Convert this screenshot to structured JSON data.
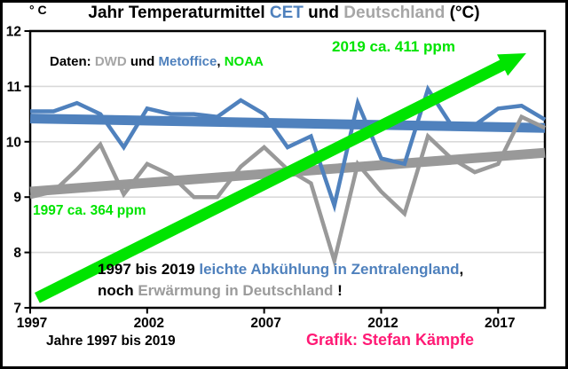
{
  "colors": {
    "cet_blue": "#4f81bd",
    "germany_gray": "#999999",
    "title_gray": "#a6a6a6",
    "co2_green": "#00e400",
    "credit_pink": "#ff1a75",
    "grid_gray": "#d9d9d9",
    "axis_black": "#000000"
  },
  "title": {
    "parts": [
      {
        "t": "Jahr Temperaturmittel ",
        "c": "#000000"
      },
      {
        "t": "CET",
        "c": "#4f81bd"
      },
      {
        "t": " und ",
        "c": "#000000"
      },
      {
        "t": "Deutschland",
        "c": "#a6a6a6"
      },
      {
        "t": " (°C)",
        "c": "#000000"
      }
    ],
    "unit_label": "° C"
  },
  "legend": {
    "parts": [
      {
        "t": "Daten: ",
        "c": "#000000"
      },
      {
        "t": "DWD",
        "c": "#a6a6a6"
      },
      {
        "t": " und ",
        "c": "#000000"
      },
      {
        "t": "Metoffice",
        "c": "#4f81bd"
      },
      {
        "t": ", ",
        "c": "#000000"
      },
      {
        "t": "NOAA",
        "c": "#00e400"
      }
    ]
  },
  "labels": {
    "co2_start": "1997 ca. 364 ppm",
    "co2_end": "2019 ca. 411 ppm",
    "annotation1_parts": [
      {
        "t": "1997 bis 2019 ",
        "c": "#000000"
      },
      {
        "t": "leichte Abkühlung in Zentralengland",
        "c": "#4f81bd"
      },
      {
        "t": ",",
        "c": "#000000"
      }
    ],
    "annotation2_parts": [
      {
        "t": "noch ",
        "c": "#000000"
      },
      {
        "t": "Erwärmung in Deutschland ",
        "c": "#9b9b9b"
      },
      {
        "t": "!",
        "c": "#000000"
      }
    ],
    "footer_left": "Jahre 1997 bis 2019",
    "footer_right": "Grafik: Stefan Kämpfe"
  },
  "chart_data": {
    "type": "line",
    "title": "Jahr Temperaturmittel CET und Deutschland (°C)",
    "xlabel": "Jahre 1997 bis 2019",
    "ylabel": "° C",
    "xlim": [
      1997,
      2019
    ],
    "ylim": [
      7,
      12
    ],
    "xticks": [
      1997,
      2002,
      2007,
      2012,
      2017
    ],
    "yticks": [
      12,
      11,
      10,
      9,
      8,
      7
    ],
    "grid": "horizontal-lightgray",
    "legend_position": "none (inline colored text top-left)",
    "x": [
      1997,
      1998,
      1999,
      2000,
      2001,
      2002,
      2003,
      2004,
      2005,
      2006,
      2007,
      2008,
      2009,
      2010,
      2011,
      2012,
      2013,
      2014,
      2015,
      2016,
      2017,
      2018,
      2019
    ],
    "series": [
      {
        "name": "CET",
        "role": "data",
        "color": "#4f81bd",
        "width": 4.5,
        "values": [
          10.55,
          10.55,
          10.7,
          10.5,
          9.9,
          10.6,
          10.5,
          10.5,
          10.45,
          10.75,
          10.5,
          9.9,
          10.1,
          8.85,
          10.7,
          9.7,
          9.6,
          10.95,
          10.3,
          10.3,
          10.6,
          10.65,
          10.4
        ]
      },
      {
        "name": "Deutschland",
        "role": "data",
        "color": "#999999",
        "width": 4.5,
        "values": [
          9.0,
          9.1,
          9.5,
          9.95,
          9.05,
          9.6,
          9.4,
          9.0,
          9.0,
          9.55,
          9.9,
          9.5,
          9.25,
          7.85,
          9.6,
          9.1,
          8.7,
          10.1,
          9.7,
          9.45,
          9.6,
          10.45,
          10.25
        ]
      },
      {
        "name": "CET Trend (leichte Abkühlung)",
        "role": "trend",
        "color": "#4f81bd",
        "width": 11,
        "x": [
          1997,
          2019
        ],
        "values": [
          10.42,
          10.25
        ]
      },
      {
        "name": "Deutschland Trend (Erwärmung)",
        "role": "trend",
        "color": "#999999",
        "width": 11,
        "x": [
          1997,
          2019
        ],
        "values": [
          9.1,
          9.8
        ]
      }
    ],
    "co2_arrow": {
      "x": [
        1997.3,
        2018.2
      ],
      "y": [
        7.18,
        11.6
      ],
      "color": "#00e400",
      "width": 13,
      "start_label": "1997 ca. 364 ppm",
      "end_label": "2019 ca. 411 ppm"
    }
  }
}
